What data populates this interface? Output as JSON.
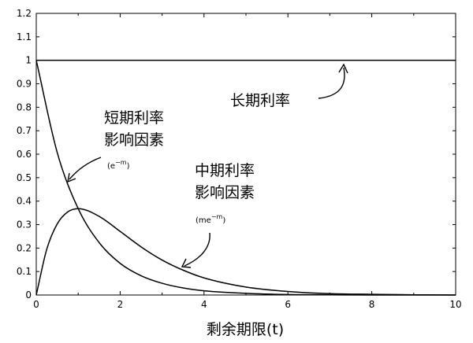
{
  "chart_data": {
    "type": "line",
    "title": "",
    "xlabel": "剩余期限(t)",
    "ylabel": "",
    "xlim": [
      0,
      10
    ],
    "ylim": [
      0,
      1.2
    ],
    "x_ticks": [
      "0",
      "2",
      "4",
      "6",
      "8",
      "10"
    ],
    "y_ticks": [
      "0",
      "0.1",
      "0.2",
      "0.3",
      "0.4",
      "0.5",
      "0.6",
      "0.7",
      "0.8",
      "0.9",
      "1",
      "1.1",
      "1.2"
    ],
    "grid": false,
    "series": [
      {
        "name": "长期利率",
        "x": [
          0,
          1,
          2,
          3,
          4,
          5,
          6,
          7,
          8,
          9,
          10
        ],
        "y": [
          1,
          1,
          1,
          1,
          1,
          1,
          1,
          1,
          1,
          1,
          1
        ]
      },
      {
        "name": "短期利率影响因素",
        "x": [
          0,
          0.5,
          1,
          1.5,
          2,
          2.5,
          3,
          3.5,
          4,
          5,
          6,
          7,
          8,
          9,
          10
        ],
        "y": [
          1,
          0.607,
          0.368,
          0.223,
          0.135,
          0.082,
          0.05,
          0.03,
          0.018,
          0.007,
          0.002,
          0.001,
          0,
          0,
          0
        ]
      },
      {
        "name": "中期利率影响因素",
        "x": [
          0,
          0.25,
          0.5,
          0.75,
          1,
          1.5,
          2,
          2.5,
          3,
          3.5,
          4,
          5,
          6,
          7,
          8,
          9,
          10
        ],
        "y": [
          0,
          0.195,
          0.303,
          0.354,
          0.368,
          0.335,
          0.271,
          0.205,
          0.149,
          0.106,
          0.073,
          0.034,
          0.015,
          0.006,
          0.003,
          0.001,
          0
        ]
      }
    ],
    "annotations": [
      {
        "line1": "长期利率",
        "line2": "",
        "formula_base": "",
        "formula_exp": ""
      },
      {
        "line1": "短期利率",
        "line2": "影响因素",
        "formula_base": "e",
        "formula_exp": "−m"
      },
      {
        "line1": "中期利率",
        "line2": "影响因素",
        "formula_base": "me",
        "formula_exp": "−m"
      }
    ]
  }
}
